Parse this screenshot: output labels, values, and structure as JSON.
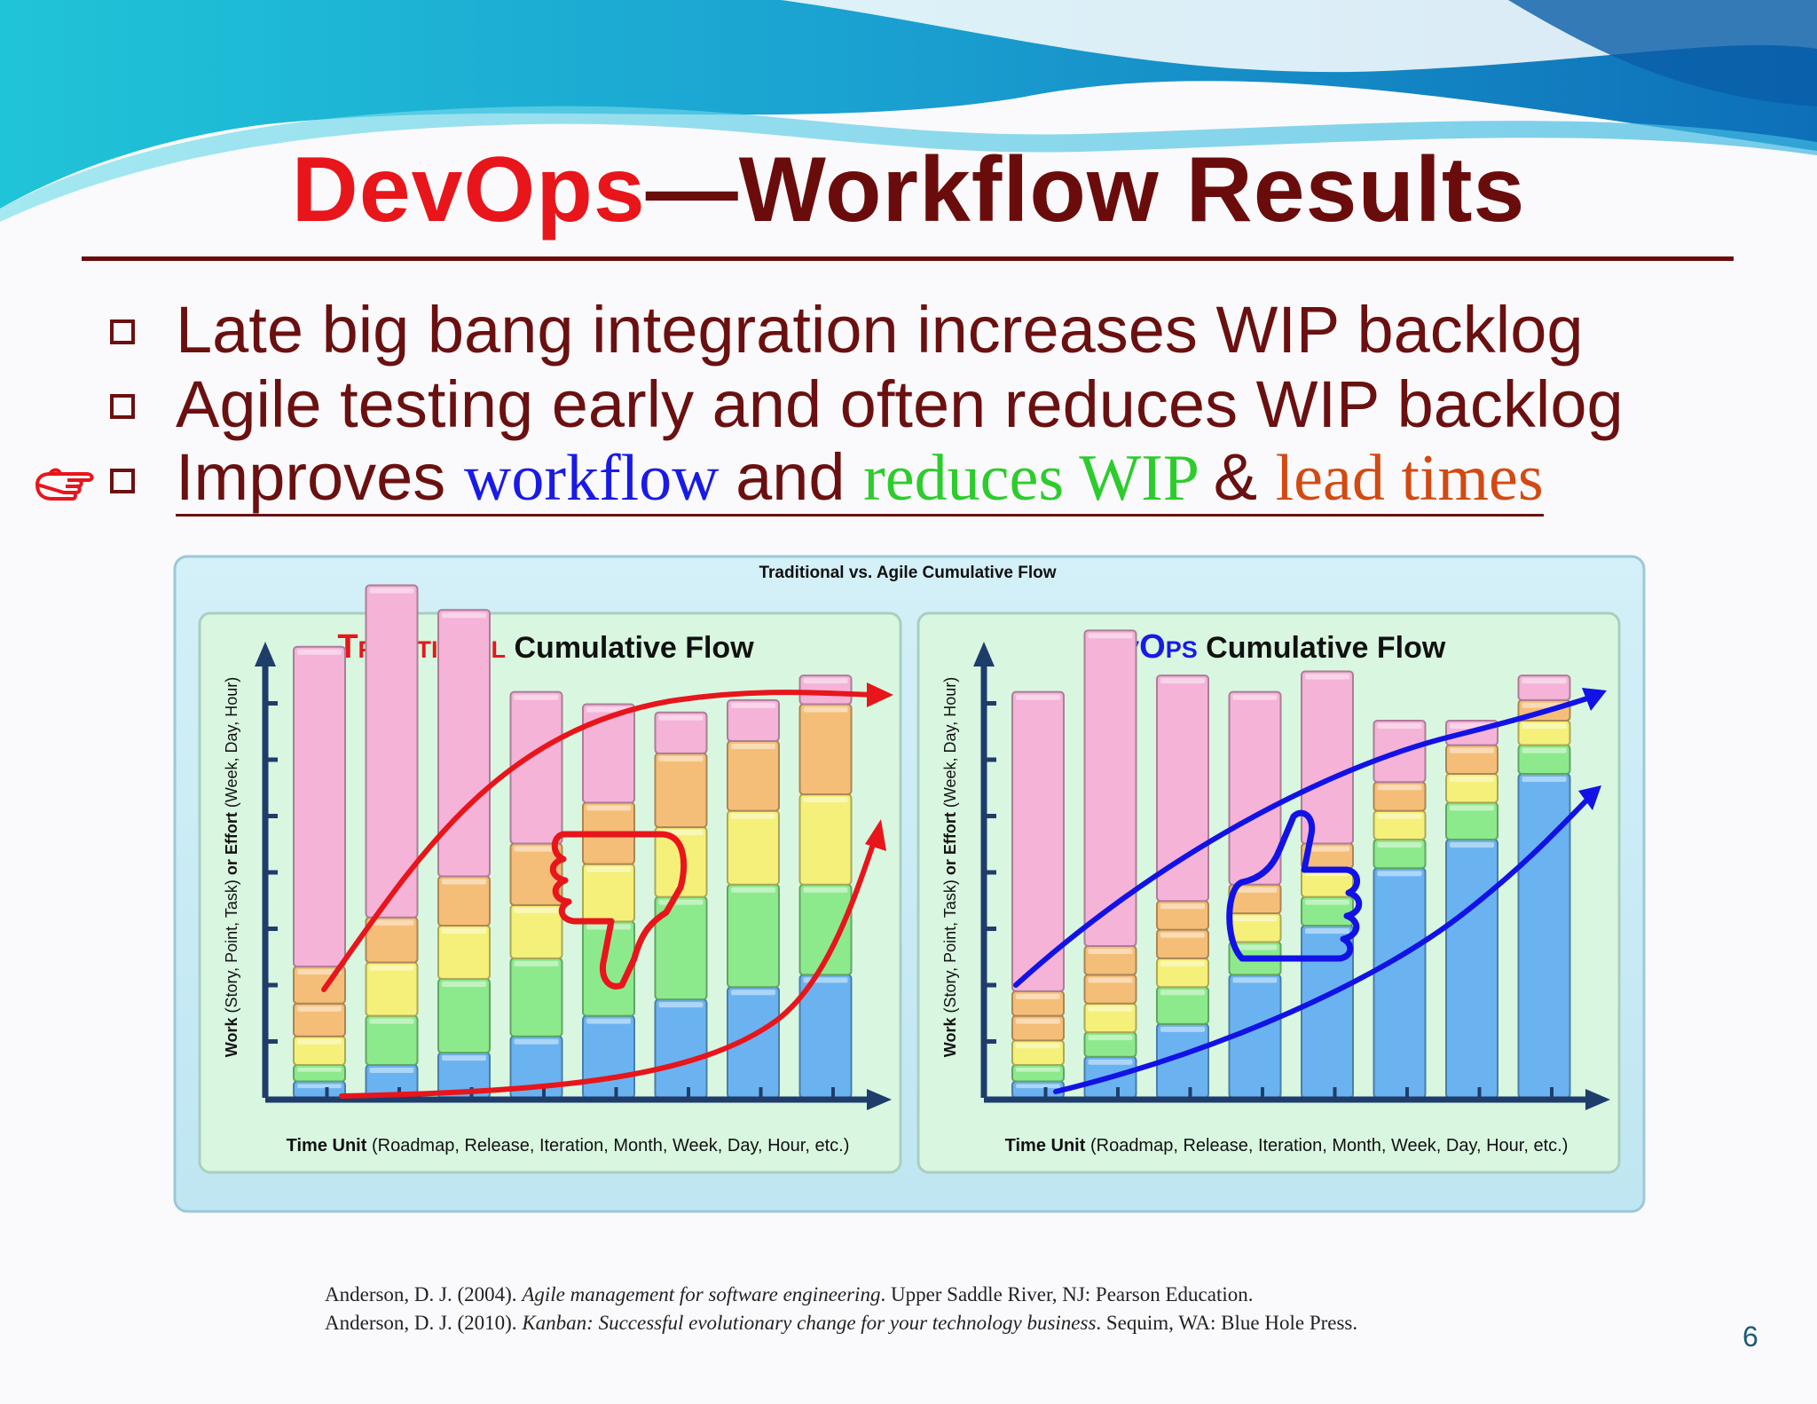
{
  "slide": {
    "title_accent": "DevOps",
    "title_rest": "—Workflow Results",
    "page_number": "6",
    "colors": {
      "title": "#6b0c0c",
      "accent": "#e8151b",
      "link_blue": "#1a1ae6",
      "green": "#2dcc2d",
      "orange": "#d24a12"
    }
  },
  "bullets": [
    "Late big bang integration increases WIP backlog",
    "Agile testing early and often reduces WIP backlog"
  ],
  "bullet3": {
    "part1": "Improves ",
    "part2": "workflow ",
    "part3": "and ",
    "part4": "reduces WIP ",
    "part5": "& ",
    "part6": "lead times"
  },
  "icons": {
    "pointer": "pointing-hand-icon",
    "thumbs_down": "thumbs-down-icon",
    "thumbs_up": "thumbs-up-icon"
  },
  "chart_data": {
    "title": "Traditional vs. Agile Cumulative Flow",
    "panels": [
      {
        "type": "bar",
        "title_accent": "Traditional",
        "title_rest": "Cumulative Flow",
        "accent_color": "#e8151b",
        "ylabel_bold1": "Work",
        "ylabel_mid": " (Story, Point, Task) ",
        "ylabel_or": "or",
        "ylabel_bold2": " Effort",
        "ylabel_tail": " (Week, Day, Hour)",
        "xlabel_bold": "Time Unit",
        "xlabel_tail": " (Roadmap, Release, Iteration, Month, Week, Day, Hour, etc.)",
        "stacked": [
          [
            4,
            4,
            7,
            8,
            9,
            78
          ],
          [
            8,
            12,
            13,
            11,
            0,
            81
          ],
          [
            11,
            18,
            13,
            12,
            0,
            65
          ],
          [
            15,
            19,
            13,
            15,
            0,
            37
          ],
          [
            20,
            23,
            14,
            15,
            0,
            24
          ],
          [
            24,
            25,
            17,
            18,
            0,
            10
          ],
          [
            27,
            25,
            18,
            17,
            0,
            10
          ],
          [
            30,
            22,
            22,
            22,
            0,
            7
          ]
        ],
        "series_colors": [
          "#6ab3f0",
          "#8cea8c",
          "#f5f07a",
          "#f5be78",
          "#f5be78",
          "#f5b3d8"
        ],
        "ylim": [
          0,
          100
        ],
        "trend_color": "#e8151b",
        "sentiment": "thumbs-down"
      },
      {
        "type": "bar",
        "title_accent": "DevOps",
        "title_rest": "Cumulative Flow",
        "accent_color": "#1a1ae6",
        "ylabel_bold1": "Work",
        "ylabel_mid": " (Story, Point, Task) ",
        "ylabel_or": "or",
        "ylabel_bold2": " Effort",
        "ylabel_tail": " (Week, Day, Hour)",
        "xlabel_bold": "Time Unit",
        "xlabel_tail": " (Roadmap, Release, Iteration, Month, Week, Day, Hour, etc.)",
        "stacked": [
          [
            4,
            4,
            6,
            6,
            6,
            73
          ],
          [
            10,
            6,
            7,
            7,
            7,
            77
          ],
          [
            18,
            9,
            7,
            7,
            7,
            55
          ],
          [
            30,
            8,
            7,
            7,
            0,
            47
          ],
          [
            42,
            7,
            7,
            6,
            0,
            42
          ],
          [
            56,
            7,
            7,
            7,
            0,
            15
          ],
          [
            63,
            9,
            7,
            7,
            0,
            6
          ],
          [
            79,
            7,
            6,
            5,
            0,
            6
          ]
        ],
        "series_colors": [
          "#6ab3f0",
          "#8cea8c",
          "#f5f07a",
          "#f5be78",
          "#f5be78",
          "#f5b3d8"
        ],
        "ylim": [
          0,
          100
        ],
        "trend_color": "#1212e6",
        "sentiment": "thumbs-up"
      }
    ]
  },
  "references": [
    {
      "pre": "Anderson, D. J. (2004). ",
      "italic": "Agile management for software engineering",
      "post": ". Upper Saddle River, NJ: Pearson Education."
    },
    {
      "pre": "Anderson, D. J. (2010). ",
      "italic": "Kanban: Successful evolutionary change for your technology business",
      "post": ". Sequim, WA: Blue Hole Press."
    }
  ]
}
